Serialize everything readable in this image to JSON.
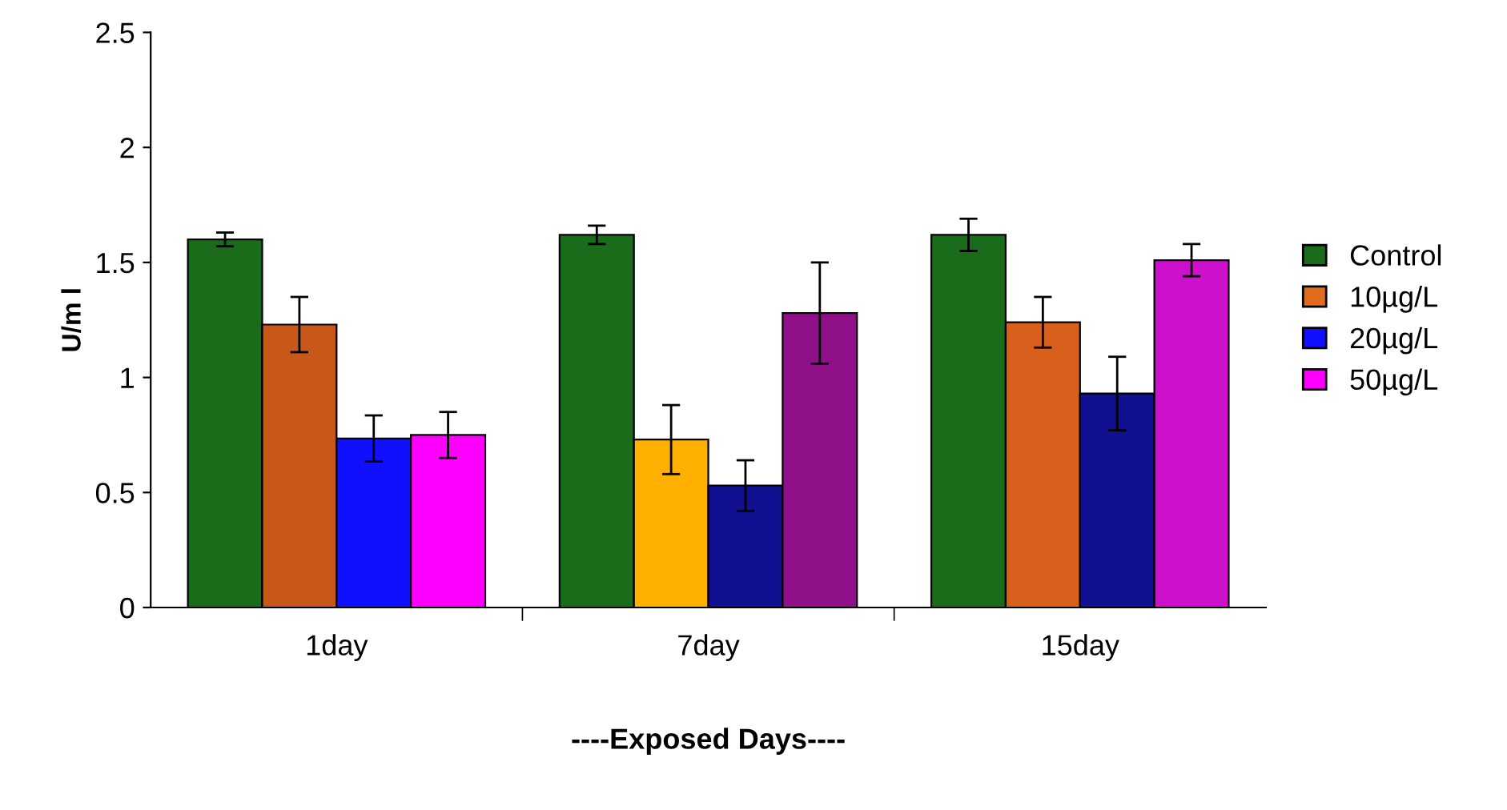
{
  "chart_data": {
    "type": "bar",
    "xlabel": "----Exposed Days----",
    "ylabel": "U/m l",
    "categories": [
      "1day",
      "7day",
      "15day"
    ],
    "series": [
      {
        "name": "Control",
        "color": "#1a6b1a",
        "colors": [
          "#1a6b1a",
          "#1a6b1a",
          "#1a6b1a"
        ],
        "values": [
          1.6,
          1.62,
          1.62
        ],
        "errors": [
          0.03,
          0.04,
          0.07
        ]
      },
      {
        "name": "10µg/L",
        "color": "#e06a1e",
        "colors": [
          "#c8581a",
          "#ffb000",
          "#d8601c"
        ],
        "values": [
          1.23,
          0.73,
          1.24
        ],
        "errors": [
          0.12,
          0.15,
          0.11
        ]
      },
      {
        "name": "20µg/L",
        "color": "#1010ff",
        "colors": [
          "#1010ff",
          "#101090",
          "#101090"
        ],
        "values": [
          0.735,
          0.53,
          0.93
        ],
        "errors": [
          0.1,
          0.11,
          0.16
        ]
      },
      {
        "name": "50µg/L",
        "color": "#ff00ff",
        "colors": [
          "#ff00ff",
          "#90108a",
          "#cc10cc"
        ],
        "values": [
          0.75,
          1.28,
          1.51
        ],
        "errors": [
          0.1,
          0.22,
          0.07
        ]
      }
    ],
    "ylim": [
      0,
      2.5
    ],
    "yticks": [
      0,
      0.5,
      1,
      1.5,
      2,
      2.5
    ],
    "grid": false,
    "legend": "right"
  }
}
